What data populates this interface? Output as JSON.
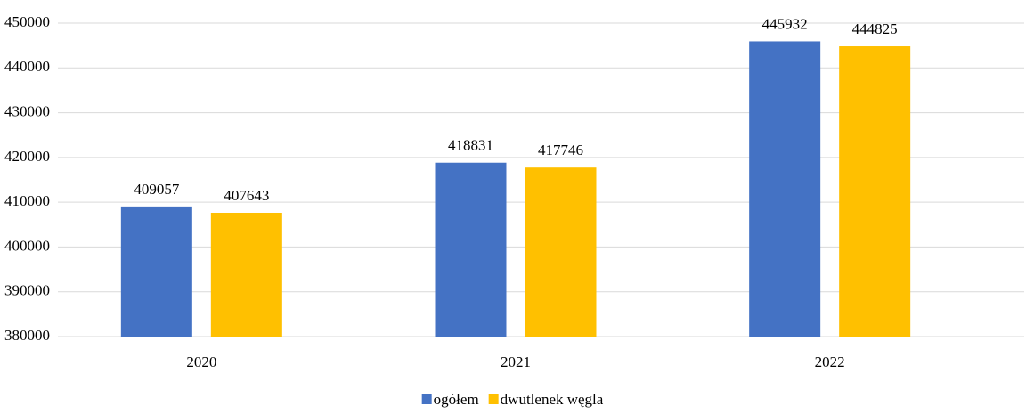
{
  "chart_data": {
    "type": "bar",
    "categories": [
      "2020",
      "2021",
      "2022"
    ],
    "series": [
      {
        "name": "ogółem",
        "color": "#4472c4",
        "values": [
          409057,
          418831,
          445932
        ]
      },
      {
        "name": "dwutlenek węgla",
        "color": "#ffc000",
        "values": [
          407643,
          417746,
          444825
        ]
      }
    ],
    "ylim": [
      380000,
      450000
    ],
    "yticks": [
      380000,
      390000,
      400000,
      410000,
      420000,
      430000,
      440000,
      450000
    ],
    "grid": true,
    "legend": "bottom"
  }
}
